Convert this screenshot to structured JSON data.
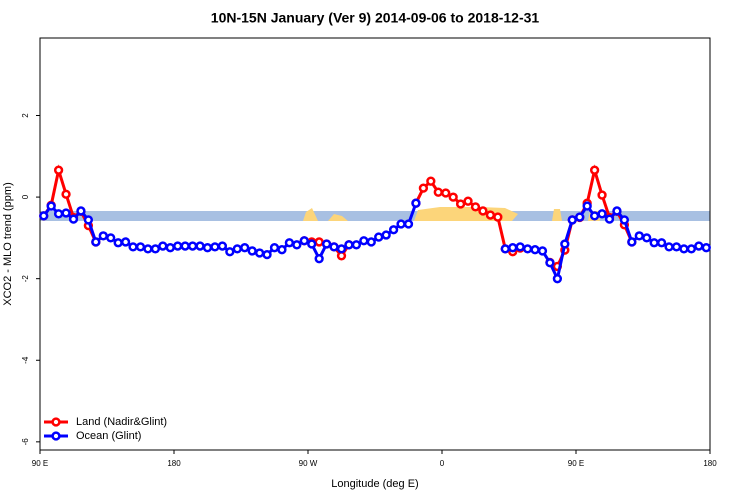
{
  "chart_data": {
    "type": "line",
    "title": "10N-15N January (Ver 9)   2014-09-06 to 2018-12-31",
    "x_label": "Longitude (deg E)",
    "y_label": "XCO2 - MLO trend (ppm)",
    "xlim": [
      90,
      540
    ],
    "xticks": [
      {
        "value": 90,
        "label": "90 E"
      },
      {
        "value": 180,
        "label": "180"
      },
      {
        "value": 270,
        "label": "90 W"
      },
      {
        "value": 360,
        "label": "0"
      },
      {
        "value": 450,
        "label": "90 E"
      },
      {
        "value": 540,
        "label": "180"
      }
    ],
    "ylim": [
      -6.2,
      3.9
    ],
    "yticks": [
      -6,
      -4,
      -2,
      0,
      2
    ],
    "legend": "bottom-left",
    "x": [
      92.5,
      97.5,
      102.5,
      107.5,
      112.5,
      117.5,
      122.5,
      127.5,
      132.5,
      137.5,
      142.5,
      147.5,
      152.5,
      157.5,
      162.5,
      167.5,
      172.5,
      177.5,
      182.5,
      187.5,
      192.5,
      197.5,
      202.5,
      207.5,
      212.5,
      217.5,
      222.5,
      227.5,
      232.5,
      237.5,
      242.5,
      247.5,
      252.5,
      257.5,
      262.5,
      267.5,
      272.5,
      277.5,
      282.5,
      287.5,
      292.5,
      297.5,
      302.5,
      307.5,
      312.5,
      317.5,
      322.5,
      327.5,
      332.5,
      337.5,
      342.5,
      347.5,
      352.5,
      357.5,
      362.5,
      367.5,
      372.5,
      377.5,
      382.5,
      387.5,
      392.5,
      397.5,
      402.5,
      407.5,
      412.5,
      417.5,
      422.5,
      427.5,
      432.5,
      437.5,
      442.5,
      447.5,
      452.5,
      457.5,
      462.5,
      467.5,
      472.5,
      477.5,
      482.5,
      487.5,
      492.5,
      497.5,
      502.5,
      507.5,
      512.5,
      517.5,
      522.5,
      527.5,
      532.5,
      537.5
    ],
    "series": [
      {
        "name": "Land (Nadir&Glint)",
        "color": "#ff0000",
        "values": [
          -0.46,
          -0.2,
          0.66,
          0.07,
          -0.5,
          -0.35,
          -0.7,
          -1.1,
          null,
          null,
          null,
          null,
          null,
          null,
          null,
          null,
          null,
          null,
          null,
          null,
          null,
          null,
          null,
          null,
          null,
          null,
          null,
          null,
          null,
          null,
          null,
          null,
          null,
          null,
          null,
          -1.07,
          -1.1,
          -1.1,
          -1.15,
          -1.22,
          -1.44,
          -1.17,
          null,
          null,
          null,
          null,
          null,
          null,
          null,
          null,
          -0.15,
          0.22,
          0.39,
          0.12,
          0.1,
          0.0,
          -0.17,
          -0.1,
          -0.24,
          -0.34,
          -0.44,
          -0.49,
          -1.27,
          -1.34,
          -1.25,
          null,
          null,
          null,
          -1.6,
          -1.7,
          -1.3,
          -0.56,
          -0.5,
          -0.15,
          0.66,
          0.05,
          -0.5,
          -0.35,
          -0.68,
          -1.1,
          null,
          null,
          null,
          null,
          null,
          null,
          null,
          null,
          null,
          null
        ]
      },
      {
        "name": "Ocean (Glint)",
        "color": "#0000ff",
        "values": [
          -0.46,
          -0.22,
          -0.41,
          -0.39,
          -0.54,
          -0.34,
          -0.56,
          -1.1,
          -0.95,
          -1.0,
          -1.12,
          -1.1,
          -1.22,
          -1.22,
          -1.27,
          -1.27,
          -1.2,
          -1.24,
          -1.2,
          -1.2,
          -1.2,
          -1.2,
          -1.24,
          -1.22,
          -1.2,
          -1.34,
          -1.27,
          -1.24,
          -1.32,
          -1.37,
          -1.41,
          -1.24,
          -1.29,
          -1.12,
          -1.17,
          -1.07,
          -1.15,
          -1.51,
          -1.15,
          -1.22,
          -1.27,
          -1.17,
          -1.17,
          -1.07,
          -1.1,
          -0.98,
          -0.93,
          -0.8,
          -0.66,
          -0.66,
          -0.15,
          null,
          null,
          null,
          null,
          null,
          null,
          null,
          null,
          null,
          null,
          null,
          -1.27,
          -1.24,
          -1.22,
          -1.27,
          -1.29,
          -1.32,
          -1.61,
          -2.0,
          -1.15,
          -0.56,
          -0.49,
          -0.22,
          -0.46,
          -0.41,
          -0.54,
          -0.34,
          -0.56,
          -1.1,
          -0.95,
          -1.0,
          -1.12,
          -1.12,
          -1.22,
          -1.22,
          -1.27,
          -1.27,
          -1.2,
          -1.24
        ]
      }
    ]
  }
}
